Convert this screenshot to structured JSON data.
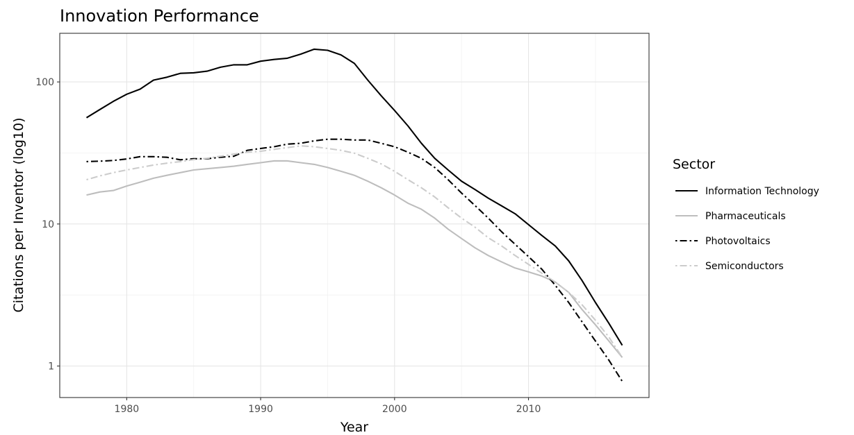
{
  "chart_data": {
    "type": "line",
    "title": "Innovation Performance",
    "xlabel": "Year",
    "ylabel": "Citations per Inventor (log10)",
    "xlim": [
      1975,
      2019
    ],
    "ylim": [
      0.6,
      220
    ],
    "y_scale": "log10",
    "x_ticks": [
      1980,
      1990,
      2000,
      2010
    ],
    "x_tick_labels": [
      "1980",
      "1990",
      "2000",
      "2010"
    ],
    "y_ticks": [
      1,
      10,
      100
    ],
    "y_tick_labels": [
      "1",
      "10",
      "100"
    ],
    "grid": true,
    "legend": {
      "title": "Sector",
      "position": "right"
    },
    "series": [
      {
        "name": "Information Technology",
        "color": "#000000",
        "style": "solid",
        "x": [
          1977,
          1978,
          1979,
          1980,
          1981,
          1982,
          1983,
          1984,
          1985,
          1986,
          1987,
          1988,
          1989,
          1990,
          1991,
          1992,
          1993,
          1994,
          1995,
          1996,
          1997,
          1998,
          1999,
          2000,
          2001,
          2002,
          2003,
          2004,
          2005,
          2006,
          2007,
          2008,
          2009,
          2010,
          2011,
          2012,
          2013,
          2014,
          2015,
          2016,
          2017
        ],
        "y": [
          56,
          64,
          73,
          82,
          89,
          103,
          108,
          115,
          116,
          119,
          127,
          132,
          132,
          140,
          144,
          147,
          157,
          170,
          167,
          155,
          135,
          103,
          80,
          63,
          49,
          37,
          29,
          24,
          20,
          17.5,
          15.2,
          13.4,
          11.8,
          9.9,
          8.3,
          7.0,
          5.5,
          4.0,
          2.8,
          2.0,
          1.4
        ]
      },
      {
        "name": "Pharmaceuticals",
        "color": "#bdbdbd",
        "style": "solid",
        "x": [
          1977,
          1978,
          1979,
          1980,
          1981,
          1982,
          1983,
          1984,
          1985,
          1986,
          1987,
          1988,
          1989,
          1990,
          1991,
          1992,
          1993,
          1994,
          1995,
          1996,
          1997,
          1998,
          1999,
          2000,
          2001,
          2002,
          2003,
          2004,
          2005,
          2006,
          2007,
          2008,
          2009,
          2010,
          2011,
          2012,
          2013,
          2014,
          2015,
          2016,
          2017
        ],
        "y": [
          16,
          16.8,
          17.2,
          18.5,
          19.7,
          21,
          22,
          23,
          24,
          24.5,
          25,
          25.5,
          26.3,
          27,
          27.8,
          27.8,
          27,
          26.3,
          25,
          23.5,
          22,
          20,
          18,
          16,
          14,
          12.7,
          11,
          9.2,
          7.9,
          6.8,
          6.0,
          5.4,
          4.9,
          4.6,
          4.3,
          3.9,
          3.3,
          2.5,
          1.95,
          1.5,
          1.15
        ]
      },
      {
        "name": "Photovoltaics",
        "color": "#000000",
        "style": "dotdash",
        "x": [
          1977,
          1978,
          1979,
          1980,
          1981,
          1982,
          1983,
          1984,
          1985,
          1986,
          1987,
          1988,
          1989,
          1990,
          1991,
          1992,
          1993,
          1994,
          1995,
          1996,
          1997,
          1998,
          1999,
          2000,
          2001,
          2002,
          2003,
          2004,
          2005,
          2006,
          2007,
          2008,
          2009,
          2010,
          2011,
          2012,
          2013,
          2014,
          2015,
          2016,
          2017
        ],
        "y": [
          27.5,
          27.7,
          28,
          28.7,
          29.8,
          29.8,
          29.5,
          28.3,
          28.8,
          28.8,
          29.5,
          30,
          33,
          34,
          35,
          36.5,
          37,
          38.5,
          39.5,
          39.5,
          39,
          39,
          37,
          35,
          32,
          29,
          25,
          20.5,
          16.5,
          13.5,
          11,
          8.8,
          7.2,
          5.9,
          4.8,
          3.7,
          2.8,
          2.05,
          1.5,
          1.1,
          0.78
        ]
      },
      {
        "name": "Semiconductors",
        "color": "#cccccc",
        "style": "dotdash",
        "x": [
          1977,
          1978,
          1979,
          1980,
          1981,
          1982,
          1983,
          1984,
          1985,
          1986,
          1987,
          1988,
          1989,
          1990,
          1991,
          1992,
          1993,
          1994,
          1995,
          1996,
          1997,
          1998,
          1999,
          2000,
          2001,
          2002,
          2003,
          2004,
          2005,
          2006,
          2007,
          2008,
          2009,
          2010,
          2011,
          2012,
          2013,
          2014,
          2015,
          2016,
          2017
        ],
        "y": [
          20.5,
          21.8,
          23,
          24,
          25,
          26,
          26.8,
          27.5,
          28.4,
          29,
          30,
          31,
          32,
          32.5,
          33.5,
          34.5,
          35.5,
          35,
          34,
          33,
          31.5,
          29,
          26.5,
          23.5,
          20.5,
          18,
          15.5,
          13,
          11,
          9.5,
          8.0,
          7.0,
          6.0,
          5.2,
          4.5,
          3.9,
          3.3,
          2.7,
          2.1,
          1.6,
          1.15
        ]
      }
    ]
  }
}
